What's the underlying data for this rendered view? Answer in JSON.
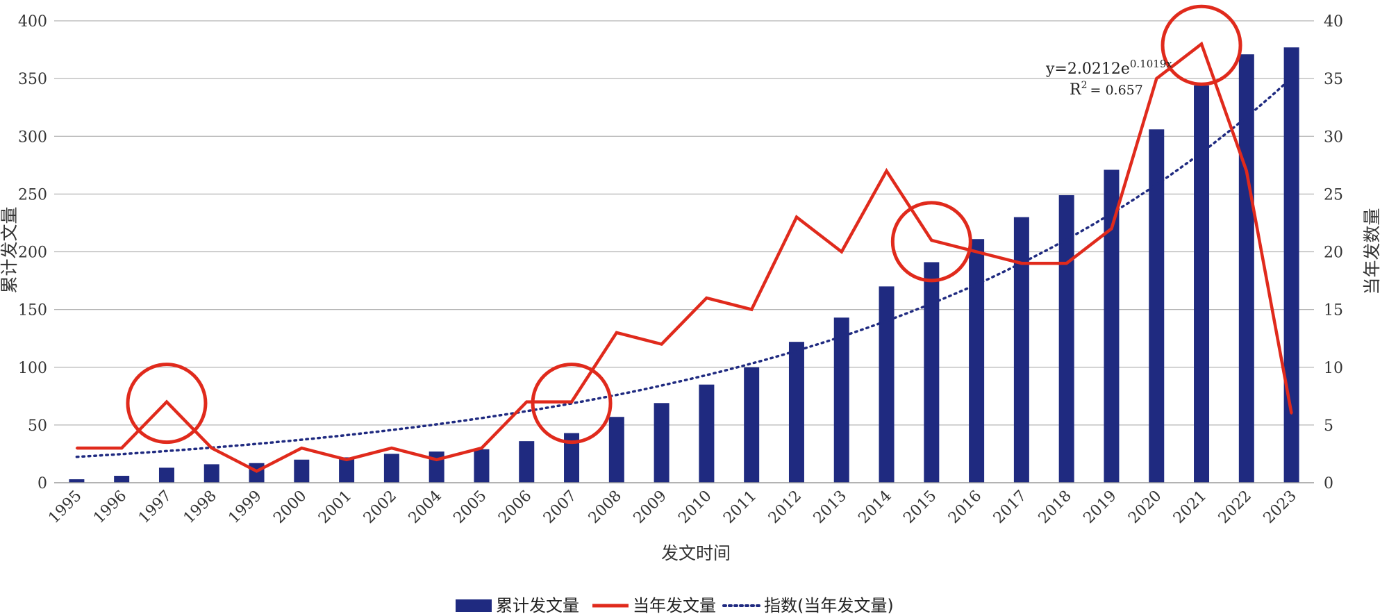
{
  "chart_data": {
    "type": "bar",
    "categories": [
      "1995",
      "1996",
      "1997",
      "1998",
      "1999",
      "2000",
      "2001",
      "2002",
      "2004",
      "2005",
      "2006",
      "2007",
      "2008",
      "2009",
      "2010",
      "2011",
      "2012",
      "2013",
      "2014",
      "2015",
      "2016",
      "2017",
      "2018",
      "2019",
      "2020",
      "2021",
      "2022",
      "2023"
    ],
    "xlabel": "发文时间",
    "ylabel": "累计发文量",
    "y2label": "当年发数量",
    "ylim": [
      0,
      400
    ],
    "y2lim": [
      0,
      40
    ],
    "yticks": [
      0,
      50,
      100,
      150,
      200,
      250,
      300,
      350,
      400
    ],
    "y2ticks": [
      0,
      5,
      10,
      15,
      20,
      25,
      30,
      35,
      40
    ],
    "grid": true,
    "legend_position": "bottom",
    "series": [
      {
        "name": "累计发文量",
        "type": "bar",
        "axis": "left",
        "color": "#1f2a80",
        "values": [
          3,
          6,
          13,
          16,
          17,
          20,
          22,
          25,
          27,
          29,
          36,
          43,
          57,
          69,
          85,
          100,
          122,
          143,
          170,
          191,
          211,
          230,
          249,
          271,
          306,
          344,
          371,
          377
        ]
      },
      {
        "name": "当年发文量",
        "type": "line",
        "axis": "right",
        "color": "#e02a1c",
        "values": [
          3,
          3,
          7,
          3,
          1,
          3,
          2,
          3,
          2,
          3,
          7,
          7,
          13,
          12,
          16,
          15,
          23,
          20,
          27,
          21,
          20,
          19,
          19,
          22,
          35,
          38,
          27,
          6
        ]
      },
      {
        "name": "指数(当年发文量)",
        "type": "trendline",
        "axis": "right",
        "color": "#1f2a80",
        "style": "dotted",
        "model": "exponential",
        "coefficient": 2.0212,
        "exponent": 0.1019
      }
    ],
    "highlighted_categories": [
      "1997",
      "2007",
      "2015",
      "2021"
    ],
    "highlight_color": "#e02a1c",
    "annotation": {
      "equation_prefix": "y=2.0212e",
      "equation_exponent": "0.1019x",
      "r2_prefix": "R",
      "r2_power": "2",
      "r2_value": "= 0.657"
    }
  }
}
